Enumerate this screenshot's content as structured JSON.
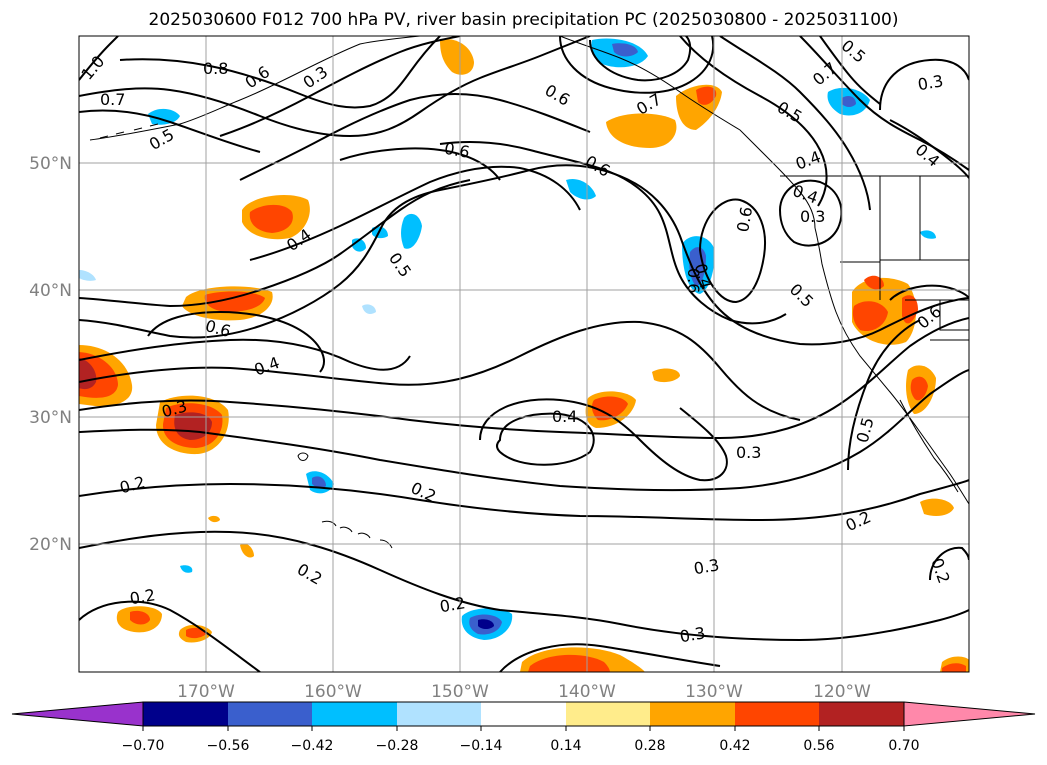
{
  "title": "2025030600 F012 700 hPa PV, river basin precipitation PC (2025030800 - 2025031100)",
  "map": {
    "lon_labels": [
      "170°W",
      "160°W",
      "150°W",
      "140°W",
      "130°W",
      "120°W"
    ],
    "lat_labels": [
      "50°N",
      "40°N",
      "30°N",
      "20°N"
    ],
    "contour_labels": [
      "1.0",
      "0.8",
      "0.7",
      "0.6",
      "0.3",
      "0.5",
      "0.6",
      "0.4",
      "0.6",
      "0.5",
      "0.4",
      "0.6",
      "0.3",
      "0.4",
      "0.3",
      "0.4",
      "0.2",
      "0.2",
      "0.3",
      "0.2",
      "0.2",
      "0.3",
      "0.2",
      "0.4",
      "0.6",
      "0.5",
      "0.7",
      "0.6",
      "0.7",
      "0.5",
      "0.4",
      "0.3",
      "0.4",
      "0.6",
      "0.3",
      "0.5",
      "0.6",
      "0.5",
      "0.2",
      "0.2"
    ]
  },
  "colorbar": {
    "ticks": [
      "−0.70",
      "−0.56",
      "−0.42",
      "−0.28",
      "−0.14",
      "0.14",
      "0.28",
      "0.42",
      "0.56",
      "0.70"
    ],
    "colors": [
      "#9932cc",
      "#00008b",
      "#3a5fcd",
      "#00bfff",
      "#b0e2ff",
      "#ffffff",
      "#ffec8b",
      "#ffa500",
      "#ff4500",
      "#b22222",
      "#ff88aa"
    ]
  },
  "chart_data": {
    "type": "heatmap",
    "title": "2025030600 F012 700 hPa PV, river basin precipitation PC (2025030800 - 2025031100)",
    "x_ticks": [
      "170°W",
      "160°W",
      "150°W",
      "140°W",
      "130°W",
      "120°W"
    ],
    "y_ticks": [
      "50°N",
      "40°N",
      "30°N",
      "20°N"
    ],
    "colorbar_levels": [
      -0.7,
      -0.56,
      -0.42,
      -0.28,
      -0.14,
      0.14,
      0.28,
      0.42,
      0.56,
      0.7
    ],
    "contour_levels": [
      0.2,
      0.3,
      0.4,
      0.5,
      0.6,
      0.7,
      0.8,
      1.0
    ],
    "grid": true
  }
}
